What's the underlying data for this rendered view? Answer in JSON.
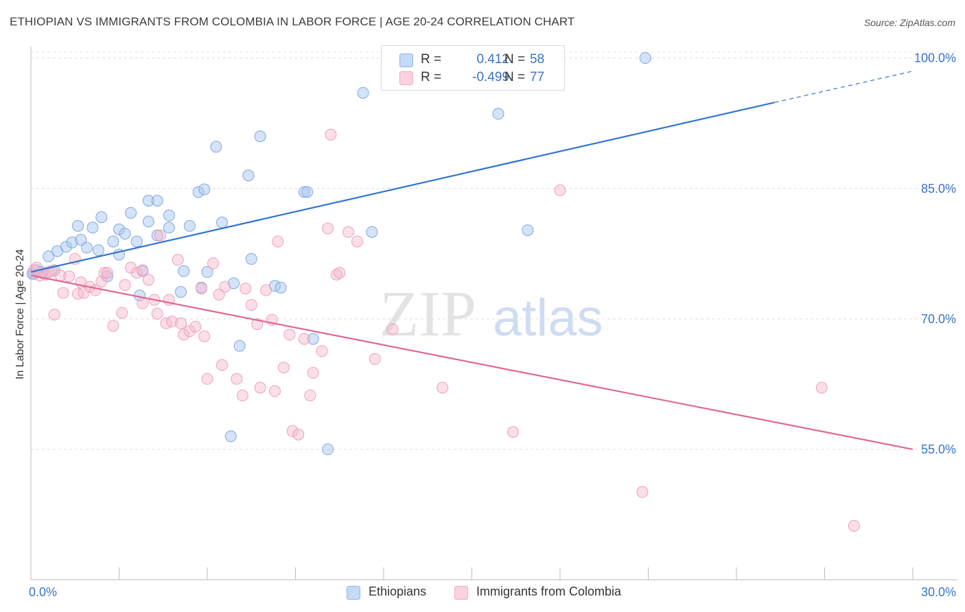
{
  "title": "ETHIOPIAN VS IMMIGRANTS FROM COLOMBIA IN LABOR FORCE | AGE 20-24 CORRELATION CHART",
  "source": "Source: ZipAtlas.com",
  "watermark": "ZIPatlas",
  "legend": {
    "rows": [
      {
        "r_label": "R =",
        "r_value": "0.412",
        "n_label": "N =",
        "n_value": "58",
        "color": "#a9c8f0"
      },
      {
        "r_label": "R =",
        "r_value": "-0.499",
        "n_label": "N =",
        "n_value": "77",
        "color": "#f6b8cc"
      }
    ]
  },
  "bottom_legend": {
    "items": [
      "Ethiopians",
      "Immigrants from Colombia"
    ]
  },
  "chart_data": {
    "type": "scatter",
    "ylabel": "In Labor Force | Age 20-24",
    "xlim": [
      0,
      30
    ],
    "ylim": [
      40,
      101
    ],
    "x_tick_labels": [
      "0.0%",
      "30.0%"
    ],
    "y_ticks": [
      55,
      70,
      85,
      100
    ],
    "y_tick_labels": [
      "55.0%",
      "70.0%",
      "85.0%",
      "100.0%"
    ],
    "grid": true,
    "colors": {
      "ethiopians": "#a9c8f0",
      "ethiopians_line": "#2f74d0",
      "colombia": "#f6b8cc",
      "colombia_line": "#e06595",
      "tick_label": "#3a73c8"
    },
    "series": [
      {
        "name": "Ethiopians",
        "trend": {
          "x": [
            0,
            25.3,
            30
          ],
          "y": [
            75.4,
            94.9,
            98.5
          ],
          "solid_until": 25.3
        },
        "points": [
          [
            0.1,
            75.2
          ],
          [
            0.4,
            75.3
          ],
          [
            0.6,
            77.2
          ],
          [
            0.8,
            75.6
          ],
          [
            0.9,
            77.8
          ],
          [
            1.2,
            78.3
          ],
          [
            1.4,
            78.8
          ],
          [
            1.6,
            80.7
          ],
          [
            1.7,
            79.1
          ],
          [
            1.9,
            78.2
          ],
          [
            2.1,
            80.5
          ],
          [
            2.3,
            77.9
          ],
          [
            2.4,
            81.7
          ],
          [
            2.6,
            74.9
          ],
          [
            2.8,
            78.9
          ],
          [
            3.0,
            77.4
          ],
          [
            3.0,
            80.3
          ],
          [
            3.2,
            79.8
          ],
          [
            3.4,
            82.2
          ],
          [
            3.6,
            78.9
          ],
          [
            3.7,
            72.7
          ],
          [
            3.8,
            75.5
          ],
          [
            4.0,
            81.2
          ],
          [
            4.0,
            83.6
          ],
          [
            4.3,
            79.6
          ],
          [
            4.3,
            83.6
          ],
          [
            4.7,
            80.5
          ],
          [
            4.7,
            81.9
          ],
          [
            5.1,
            73.1
          ],
          [
            5.2,
            75.5
          ],
          [
            5.4,
            80.7
          ],
          [
            5.7,
            84.6
          ],
          [
            5.8,
            73.6
          ],
          [
            5.9,
            84.9
          ],
          [
            6.0,
            75.4
          ],
          [
            6.3,
            89.8
          ],
          [
            6.5,
            81.1
          ],
          [
            6.8,
            56.5
          ],
          [
            6.9,
            74.1
          ],
          [
            7.1,
            66.9
          ],
          [
            7.4,
            86.5
          ],
          [
            7.5,
            76.9
          ],
          [
            7.8,
            91.0
          ],
          [
            8.3,
            73.8
          ],
          [
            8.5,
            73.6
          ],
          [
            9.3,
            84.6
          ],
          [
            9.4,
            84.6
          ],
          [
            9.6,
            67.7
          ],
          [
            10.1,
            55.0
          ],
          [
            11.3,
            96.0
          ],
          [
            11.6,
            80.0
          ],
          [
            14.8,
            100.3
          ],
          [
            15.9,
            93.6
          ],
          [
            16.9,
            80.2
          ],
          [
            20.9,
            100.0
          ],
          [
            0.05,
            75.2
          ],
          [
            0.2,
            75.6
          ],
          [
            0.35,
            75.4
          ]
        ]
      },
      {
        "name": "Immigrants from Colombia",
        "trend": {
          "x": [
            0,
            30
          ],
          "y": [
            75.0,
            55.0
          ]
        },
        "points": [
          [
            0.1,
            75.6
          ],
          [
            0.2,
            75.9
          ],
          [
            0.3,
            75.0
          ],
          [
            0.5,
            75.1
          ],
          [
            0.6,
            75.4
          ],
          [
            0.7,
            75.5
          ],
          [
            0.8,
            70.5
          ],
          [
            1.0,
            75.0
          ],
          [
            1.1,
            73.0
          ],
          [
            1.3,
            74.9
          ],
          [
            1.5,
            76.9
          ],
          [
            1.6,
            72.9
          ],
          [
            1.7,
            74.2
          ],
          [
            1.8,
            73.0
          ],
          [
            2.0,
            73.7
          ],
          [
            2.2,
            73.3
          ],
          [
            2.4,
            74.3
          ],
          [
            2.5,
            75.3
          ],
          [
            2.6,
            75.3
          ],
          [
            2.8,
            69.2
          ],
          [
            3.1,
            70.7
          ],
          [
            3.2,
            73.9
          ],
          [
            3.4,
            75.9
          ],
          [
            3.6,
            75.3
          ],
          [
            3.8,
            75.6
          ],
          [
            3.8,
            71.8
          ],
          [
            4.0,
            74.5
          ],
          [
            4.2,
            72.2
          ],
          [
            4.3,
            70.6
          ],
          [
            4.4,
            79.6
          ],
          [
            4.6,
            69.5
          ],
          [
            4.7,
            72.2
          ],
          [
            4.8,
            69.7
          ],
          [
            5.0,
            76.8
          ],
          [
            5.1,
            69.5
          ],
          [
            5.2,
            68.2
          ],
          [
            5.4,
            68.6
          ],
          [
            5.6,
            69.1
          ],
          [
            5.8,
            73.5
          ],
          [
            5.9,
            68.0
          ],
          [
            6.0,
            63.1
          ],
          [
            6.2,
            76.4
          ],
          [
            6.4,
            72.8
          ],
          [
            6.5,
            64.7
          ],
          [
            6.6,
            73.7
          ],
          [
            7.0,
            63.1
          ],
          [
            7.2,
            61.2
          ],
          [
            7.3,
            73.5
          ],
          [
            7.5,
            71.6
          ],
          [
            7.7,
            69.4
          ],
          [
            7.8,
            62.1
          ],
          [
            8.0,
            73.3
          ],
          [
            8.2,
            69.9
          ],
          [
            8.3,
            61.7
          ],
          [
            8.4,
            78.9
          ],
          [
            8.6,
            64.4
          ],
          [
            8.8,
            68.2
          ],
          [
            8.9,
            57.1
          ],
          [
            9.1,
            56.7
          ],
          [
            9.3,
            67.7
          ],
          [
            9.5,
            61.2
          ],
          [
            9.6,
            63.8
          ],
          [
            9.9,
            66.3
          ],
          [
            10.1,
            80.4
          ],
          [
            10.2,
            91.2
          ],
          [
            10.4,
            75.1
          ],
          [
            10.5,
            75.3
          ],
          [
            10.8,
            80.0
          ],
          [
            11.1,
            78.9
          ],
          [
            11.7,
            65.4
          ],
          [
            12.3,
            68.8
          ],
          [
            14.0,
            62.1
          ],
          [
            16.4,
            57.0
          ],
          [
            18.0,
            84.8
          ],
          [
            20.8,
            50.1
          ],
          [
            26.9,
            62.1
          ],
          [
            28.0,
            46.2
          ]
        ]
      }
    ]
  }
}
